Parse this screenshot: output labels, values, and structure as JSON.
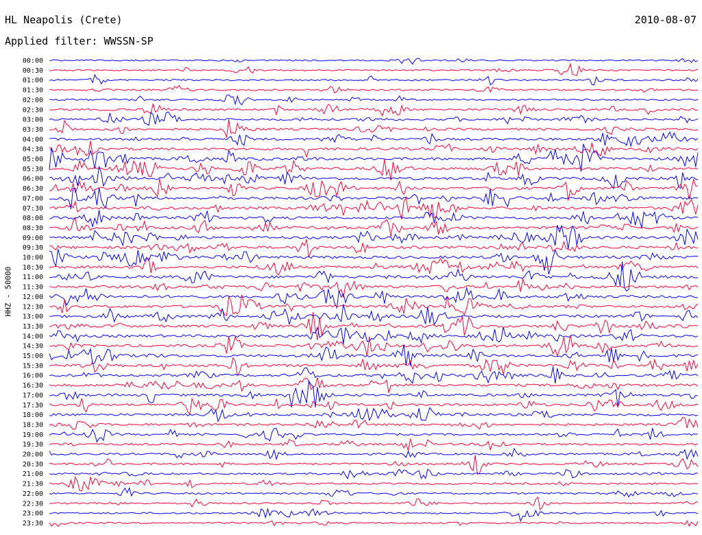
{
  "header": {
    "station": "HL Neapolis (Crete)",
    "date": "2010-08-07",
    "filter": "Applied filter: WWSSN-SP"
  },
  "chart_data": {
    "type": "line",
    "title": "HL Neapolis (Crete)",
    "subtitle": "Applied filter: WWSSN-SP",
    "date": "2010-08-07",
    "ylabel": "HHZ - 50000",
    "trace_colors": [
      "#0000ff",
      "#ff0033"
    ],
    "rows": [
      {
        "label": "00:00",
        "activity": 0.15
      },
      {
        "label": "00:30",
        "activity": 0.2
      },
      {
        "label": "01:00",
        "activity": 0.25
      },
      {
        "label": "01:30",
        "activity": 0.25
      },
      {
        "label": "02:00",
        "activity": 0.35
      },
      {
        "label": "02:30",
        "activity": 0.55
      },
      {
        "label": "03:00",
        "activity": 0.6
      },
      {
        "label": "03:30",
        "activity": 0.6
      },
      {
        "label": "04:00",
        "activity": 0.7
      },
      {
        "label": "04:30",
        "activity": 0.8
      },
      {
        "label": "05:00",
        "activity": 0.85
      },
      {
        "label": "05:30",
        "activity": 0.85
      },
      {
        "label": "06:00",
        "activity": 0.9
      },
      {
        "label": "06:30",
        "activity": 0.9
      },
      {
        "label": "07:00",
        "activity": 0.9
      },
      {
        "label": "07:30",
        "activity": 0.9
      },
      {
        "label": "08:00",
        "activity": 0.85
      },
      {
        "label": "08:30",
        "activity": 0.9
      },
      {
        "label": "09:00",
        "activity": 0.9
      },
      {
        "label": "09:30",
        "activity": 0.9
      },
      {
        "label": "10:00",
        "activity": 0.9
      },
      {
        "label": "10:30",
        "activity": 0.9
      },
      {
        "label": "11:00",
        "activity": 0.9
      },
      {
        "label": "11:30",
        "activity": 0.9
      },
      {
        "label": "12:00",
        "activity": 0.85
      },
      {
        "label": "12:30",
        "activity": 0.85
      },
      {
        "label": "13:00",
        "activity": 0.85
      },
      {
        "label": "13:30",
        "activity": 0.85
      },
      {
        "label": "14:00",
        "activity": 0.9
      },
      {
        "label": "14:30",
        "activity": 0.9
      },
      {
        "label": "15:00",
        "activity": 0.9
      },
      {
        "label": "15:30",
        "activity": 0.85
      },
      {
        "label": "16:00",
        "activity": 0.85
      },
      {
        "label": "16:30",
        "activity": 0.8
      },
      {
        "label": "17:00",
        "activity": 0.75
      },
      {
        "label": "17:30",
        "activity": 0.75
      },
      {
        "label": "18:00",
        "activity": 0.7
      },
      {
        "label": "18:30",
        "activity": 0.6
      },
      {
        "label": "19:00",
        "activity": 0.5
      },
      {
        "label": "19:30",
        "activity": 0.5
      },
      {
        "label": "20:00",
        "activity": 0.45
      },
      {
        "label": "20:30",
        "activity": 0.45
      },
      {
        "label": "21:00",
        "activity": 0.4
      },
      {
        "label": "21:30",
        "activity": 0.4
      },
      {
        "label": "22:00",
        "activity": 0.35
      },
      {
        "label": "22:30",
        "activity": 0.3
      },
      {
        "label": "23:00",
        "activity": 0.3
      },
      {
        "label": "23:30",
        "activity": 0.3
      }
    ]
  }
}
